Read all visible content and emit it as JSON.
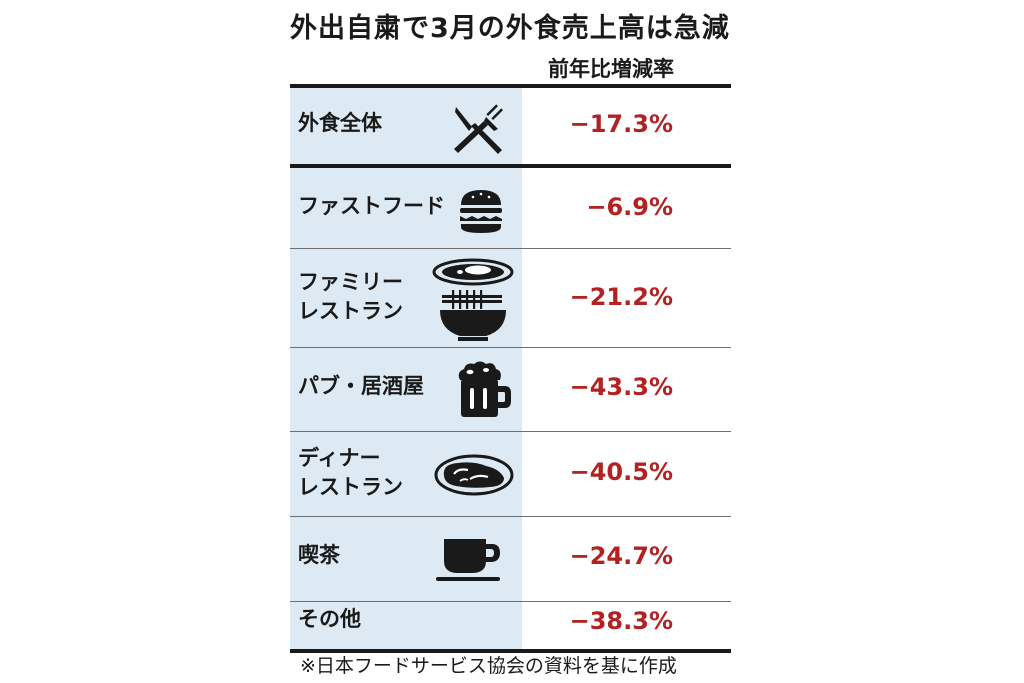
{
  "chart_data": {
    "type": "table",
    "title": "外出自粛で3月の外食売上高は急減",
    "column_header": "前年比増減率",
    "unit": "%",
    "rows": [
      {
        "lines": [
          "外食全体"
        ],
        "display": "−17.3%",
        "value": -17.3,
        "icon": "fork-knife-icon"
      },
      {
        "lines": [
          "ファストフード"
        ],
        "display": "−6.9%",
        "value": -6.9,
        "icon": "burger-icon"
      },
      {
        "lines": [
          "ファミリー",
          "レストラン"
        ],
        "display": "−21.2%",
        "value": -21.2,
        "icon": "curry-plate-noodle-bowl-icon"
      },
      {
        "lines": [
          "パブ・居酒屋"
        ],
        "display": "−43.3%",
        "value": -43.3,
        "icon": "beer-mug-icon"
      },
      {
        "lines": [
          "ディナー",
          "レストラン"
        ],
        "display": "−40.5%",
        "value": -40.5,
        "icon": "steak-plate-icon"
      },
      {
        "lines": [
          "喫茶"
        ],
        "display": "−24.7%",
        "value": -24.7,
        "icon": "coffee-cup-icon"
      },
      {
        "lines": [
          "その他"
        ],
        "display": "−38.3%",
        "value": -38.3,
        "icon": ""
      }
    ],
    "source": "※日本フードサービス協会の資料を基に作成",
    "colors": {
      "label_bg": "#ddeaf4",
      "value_text": "#b22222",
      "rule": "#1a1a1a"
    }
  }
}
